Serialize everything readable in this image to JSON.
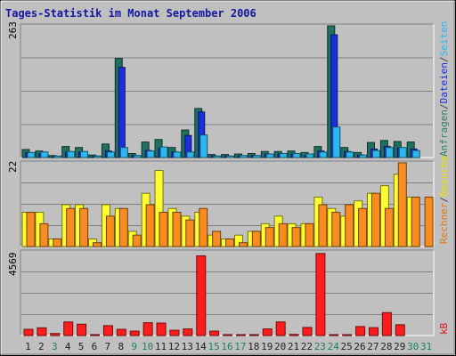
{
  "chart_data": [
    {
      "type": "bar",
      "title": "Tages-Statistik im Monat September 2006",
      "ymax_label": "263",
      "ylim": [
        0,
        263
      ],
      "right_labels": [
        {
          "text": "Anfragen",
          "color": "#2f8068"
        },
        {
          "text": "/",
          "color": "#444444"
        },
        {
          "text": "Dateien",
          "color": "#1b2fdd"
        },
        {
          "text": "/",
          "color": "#444444"
        },
        {
          "text": "Seiten",
          "color": "#2bb8ee"
        }
      ],
      "categories": [
        "1",
        "2",
        "3",
        "4",
        "5",
        "6",
        "7",
        "8",
        "9",
        "10",
        "11",
        "12",
        "13",
        "14",
        "15",
        "16",
        "17",
        "18",
        "19",
        "20",
        "21",
        "22",
        "23",
        "24",
        "25",
        "26",
        "27",
        "28",
        "29",
        "30",
        "31"
      ],
      "series": [
        {
          "name": "Anfragen",
          "color": "#207060",
          "values": [
            16,
            13,
            4,
            22,
            20,
            5,
            27,
            198,
            8,
            31,
            36,
            20,
            55,
            98,
            6,
            6,
            7,
            8,
            12,
            12,
            13,
            10,
            22,
            263,
            20,
            10,
            30,
            34,
            32,
            31,
            0
          ]
        },
        {
          "name": "Dateien",
          "color": "#1b2fdd",
          "values": [
            10,
            7,
            1,
            11,
            11,
            2,
            13,
            180,
            4,
            14,
            18,
            11,
            44,
            91,
            3,
            3,
            3,
            4,
            7,
            8,
            7,
            4,
            13,
            245,
            12,
            5,
            17,
            22,
            19,
            17,
            0
          ]
        },
        {
          "name": "Seiten",
          "color": "#2bb8ee",
          "values": [
            10,
            11,
            3,
            12,
            12,
            3,
            11,
            20,
            4,
            13,
            21,
            11,
            11,
            45,
            3,
            3,
            4,
            4,
            7,
            8,
            8,
            7,
            11,
            61,
            11,
            5,
            14,
            20,
            20,
            14,
            0
          ]
        }
      ]
    },
    {
      "type": "bar",
      "ymax_label": "22",
      "ylim": [
        0,
        22
      ],
      "right_labels": [
        {
          "text": "Rechner",
          "color": "#e07818"
        },
        {
          "text": "/",
          "color": "#444444"
        },
        {
          "text": "Besuche",
          "color": "#e8e000"
        }
      ],
      "series": [
        {
          "name": "Besuche",
          "color": "#ffff30",
          "values": [
            9,
            9,
            2,
            11,
            11,
            2,
            11,
            10,
            4,
            14,
            20,
            10,
            8,
            9,
            3,
            2,
            3,
            4,
            6,
            8,
            6,
            6,
            13,
            10,
            8,
            12,
            14,
            16,
            19,
            13,
            0
          ]
        },
        {
          "name": "Rechner",
          "color": "#f88c20",
          "values": [
            9,
            6,
            2,
            10,
            10,
            1,
            8,
            10,
            3,
            11,
            9,
            9,
            7,
            10,
            4,
            2,
            1,
            4,
            5,
            6,
            5,
            6,
            11,
            9,
            11,
            10,
            14,
            10,
            22,
            13,
            13
          ]
        }
      ]
    },
    {
      "type": "bar",
      "ymax_label": "4569",
      "ylim": [
        0,
        4569
      ],
      "right_labels": [
        {
          "text": "kB",
          "color": "#e01818"
        }
      ],
      "series": [
        {
          "name": "kB",
          "color": "#ff1c1c",
          "values": [
            340,
            420,
            110,
            740,
            620,
            40,
            540,
            340,
            240,
            700,
            680,
            290,
            360,
            4350,
            240,
            40,
            40,
            40,
            360,
            740,
            60,
            440,
            4480,
            40,
            40,
            490,
            430,
            1250,
            590,
            0,
            0
          ]
        }
      ],
      "day_colors": [
        "#222222",
        "#222222",
        "#208060",
        "#222222",
        "#222222",
        "#222222",
        "#222222",
        "#222222",
        "#208060",
        "#208060",
        "#222222",
        "#222222",
        "#222222",
        "#222222",
        "#208060",
        "#208060",
        "#208060",
        "#222222",
        "#222222",
        "#222222",
        "#222222",
        "#222222",
        "#208060",
        "#208060",
        "#222222",
        "#222222",
        "#222222",
        "#222222",
        "#222222",
        "#208060",
        "#208060"
      ]
    }
  ]
}
